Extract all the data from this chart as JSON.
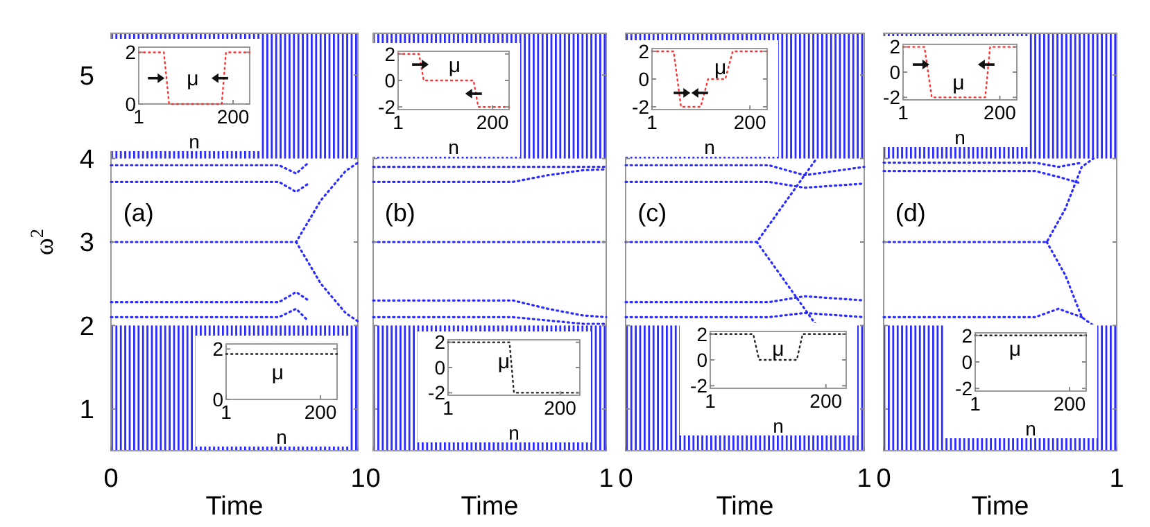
{
  "chart_data": [
    {
      "type": "line",
      "xlabel": "Time",
      "ylabel": "ω$^{2}$",
      "xlim": [
        0,
        1
      ],
      "ylim": [
        0.5,
        5.5
      ],
      "xticks": [
        0,
        1
      ],
      "yticks": [
        1,
        2,
        3,
        4,
        5
      ],
      "line_style": "dotted",
      "annotations": [
        "(a)"
      ],
      "bands": [
        {
          "axis": "y",
          "from": 0.5,
          "to": 2,
          "color": "#2b2bff"
        },
        {
          "axis": "y",
          "from": 4,
          "to": 5.5,
          "color": "#2b2bff"
        }
      ],
      "series": [
        {
          "color": "#2b2bff",
          "x": [
            0,
            0.68,
            0.75,
            0.8
          ],
          "values": [
            3.92,
            3.92,
            3.82,
            3.95
          ]
        },
        {
          "color": "#2b2bff",
          "x": [
            0,
            0.68,
            0.75,
            0.8
          ],
          "values": [
            3.72,
            3.72,
            3.6,
            3.7
          ]
        },
        {
          "color": "#2b2bff",
          "x": [
            0,
            0.75,
            0.85,
            0.95,
            1
          ],
          "values": [
            3,
            3,
            3.5,
            3.85,
            3.95
          ]
        },
        {
          "color": "#2b2bff",
          "x": [
            0.75,
            0.85,
            0.95,
            1
          ],
          "values": [
            3,
            2.5,
            2.15,
            2.05
          ]
        },
        {
          "color": "#2b2bff",
          "x": [
            0,
            0.68,
            0.75,
            0.8
          ],
          "values": [
            2.28,
            2.28,
            2.4,
            2.3
          ]
        },
        {
          "color": "#2b2bff",
          "x": [
            0,
            0.68,
            0.75,
            0.8
          ],
          "values": [
            2.1,
            2.1,
            2.2,
            2.05
          ]
        }
      ]
    },
    {
      "type": "line",
      "xlabel": "n",
      "xlim": [
        1,
        235
      ],
      "ylim": [
        0,
        2.2
      ],
      "xticks": [
        1,
        200
      ],
      "yticks": [
        0,
        2
      ],
      "line_style": "dotted",
      "annotations": [
        "μ"
      ],
      "series": [
        {
          "color": "#ff3333",
          "x": [
            1,
            54,
            65,
            176,
            185,
            235
          ],
          "values": [
            2,
            2,
            0,
            0,
            2,
            2
          ]
        }
      ]
    },
    {
      "type": "line",
      "xlabel": "n",
      "xlim": [
        1,
        235
      ],
      "ylim": [
        0,
        2.2
      ],
      "xticks": [
        1,
        200
      ],
      "yticks": [
        0,
        2
      ],
      "line_style": "dotted",
      "annotations": [
        "μ"
      ],
      "series": [
        {
          "color": "#222222",
          "x": [
            1,
            235
          ],
          "values": [
            1.8,
            1.8
          ]
        }
      ]
    },
    {
      "type": "line",
      "xlabel": "Time",
      "xlim": [
        0,
        1
      ],
      "ylim": [
        0.5,
        5.5
      ],
      "xticks": [
        0,
        1
      ],
      "yticks": [
        1,
        2,
        3,
        4,
        5
      ],
      "tick_labels": "x",
      "line_style": "dotted",
      "annotations": [
        "(b)"
      ],
      "bands": [
        {
          "axis": "y",
          "from": 0.5,
          "to": 2,
          "color": "#2b2bff"
        },
        {
          "axis": "y",
          "from": 4,
          "to": 5.5,
          "color": "#2b2bff"
        }
      ],
      "series": [
        {
          "color": "#2b2bff",
          "x": [
            0,
            1
          ],
          "values": [
            3.9,
            3.9
          ]
        },
        {
          "color": "#2b2bff",
          "x": [
            0,
            0.6,
            0.75,
            0.9,
            1
          ],
          "values": [
            3.72,
            3.72,
            3.8,
            3.86,
            3.87
          ]
        },
        {
          "color": "#2b2bff",
          "x": [
            0,
            1
          ],
          "values": [
            3,
            3
          ]
        },
        {
          "color": "#2b2bff",
          "x": [
            0,
            0.6,
            0.75,
            0.9,
            1
          ],
          "values": [
            2.3,
            2.3,
            2.2,
            2.12,
            2.1
          ]
        },
        {
          "color": "#2b2bff",
          "x": [
            0,
            0.6,
            0.75,
            0.9,
            1
          ],
          "values": [
            2.1,
            2.1,
            2.06,
            2.02,
            2.02
          ]
        }
      ]
    },
    {
      "type": "line",
      "xlabel": "n",
      "xlim": [
        1,
        235
      ],
      "ylim": [
        -2.2,
        2.2
      ],
      "xticks": [
        1,
        200
      ],
      "yticks": [
        -2,
        0,
        2
      ],
      "line_style": "dotted",
      "annotations": [
        "μ"
      ],
      "series": [
        {
          "color": "#ff3333",
          "x": [
            1,
            45,
            55,
            160,
            170,
            235
          ],
          "values": [
            2,
            2,
            0,
            0,
            -2,
            -2
          ]
        }
      ]
    },
    {
      "type": "line",
      "xlabel": "n",
      "xlim": [
        1,
        235
      ],
      "ylim": [
        -2.2,
        2.2
      ],
      "xticks": [
        1,
        200
      ],
      "yticks": [
        -2,
        0,
        2
      ],
      "line_style": "dotted",
      "annotations": [
        "μ"
      ],
      "series": [
        {
          "color": "#222222",
          "x": [
            1,
            110,
            118,
            235
          ],
          "values": [
            2,
            2,
            -2,
            -2
          ]
        }
      ]
    },
    {
      "type": "line",
      "xlabel": "Time",
      "xlim": [
        0,
        1
      ],
      "ylim": [
        0.5,
        5.5
      ],
      "xticks": [
        0,
        1
      ],
      "yticks": [
        1,
        2,
        3,
        4,
        5
      ],
      "tick_labels": "x",
      "line_style": "dotted",
      "annotations": [
        "(c)"
      ],
      "bands": [
        {
          "axis": "y",
          "from": 0.5,
          "to": 2,
          "color": "#2b2bff"
        },
        {
          "axis": "y",
          "from": 4,
          "to": 5.5,
          "color": "#2b2bff"
        }
      ],
      "series": [
        {
          "color": "#2b2bff",
          "x": [
            0,
            0.6,
            0.75,
            1
          ],
          "values": [
            3.92,
            3.92,
            3.8,
            3.9
          ]
        },
        {
          "color": "#2b2bff",
          "x": [
            0,
            0.6,
            0.75,
            1
          ],
          "values": [
            3.72,
            3.72,
            3.65,
            3.7
          ]
        },
        {
          "color": "#2b2bff",
          "x": [
            0,
            0.55,
            0.65,
            0.75,
            0.8
          ],
          "values": [
            3,
            3,
            3.4,
            3.8,
            4
          ]
        },
        {
          "color": "#2b2bff",
          "x": [
            0.55,
            0.65,
            0.75,
            0.8
          ],
          "values": [
            3,
            2.6,
            2.2,
            2
          ]
        },
        {
          "color": "#2b2bff",
          "x": [
            0,
            0.6,
            0.75,
            1
          ],
          "values": [
            2.28,
            2.28,
            2.35,
            2.3
          ]
        },
        {
          "color": "#2b2bff",
          "x": [
            0,
            0.6,
            0.75,
            1
          ],
          "values": [
            2.1,
            2.1,
            2.15,
            2.1
          ]
        }
      ]
    },
    {
      "type": "line",
      "xlabel": "n",
      "xlim": [
        1,
        235
      ],
      "ylim": [
        -2.2,
        2.2
      ],
      "xticks": [
        1,
        200
      ],
      "yticks": [
        -2,
        0,
        2
      ],
      "line_style": "dotted",
      "annotations": [
        "μ"
      ],
      "series": [
        {
          "color": "#ff3333",
          "x": [
            1,
            45,
            60,
            100,
            115,
            150,
            165,
            235
          ],
          "values": [
            2,
            2,
            -2,
            -2,
            0,
            0,
            2,
            2
          ]
        }
      ]
    },
    {
      "type": "line",
      "xlabel": "n",
      "xlim": [
        1,
        235
      ],
      "ylim": [
        -2.2,
        2.2
      ],
      "xticks": [
        1,
        200
      ],
      "yticks": [
        -2,
        0,
        2
      ],
      "line_style": "dotted",
      "annotations": [
        "μ"
      ],
      "series": [
        {
          "color": "#222222",
          "x": [
            1,
            75,
            85,
            150,
            160,
            235
          ],
          "values": [
            2,
            2,
            0,
            0,
            2,
            2
          ]
        }
      ]
    },
    {
      "type": "line",
      "xlabel": "Time",
      "xlim": [
        0,
        1
      ],
      "ylim": [
        0.5,
        5.5
      ],
      "xticks": [
        0,
        1
      ],
      "yticks": [
        1,
        2,
        3,
        4,
        5
      ],
      "tick_labels": "x",
      "line_style": "dotted",
      "annotations": [
        "(d)"
      ],
      "bands": [
        {
          "axis": "y",
          "from": 0.5,
          "to": 2,
          "color": "#2b2bff"
        },
        {
          "axis": "y",
          "from": 4,
          "to": 5.5,
          "color": "#2b2bff"
        }
      ],
      "series": [
        {
          "color": "#2b2bff",
          "x": [
            0,
            0.65,
            0.75,
            0.85
          ],
          "values": [
            3.95,
            3.95,
            3.9,
            3.95
          ]
        },
        {
          "color": "#2b2bff",
          "x": [
            0,
            0.65,
            0.75,
            0.85
          ],
          "values": [
            3.85,
            3.85,
            3.78,
            3.7
          ]
        },
        {
          "color": "#2b2bff",
          "x": [
            0,
            0.7,
            0.78,
            0.85,
            0.9
          ],
          "values": [
            3,
            3,
            3.4,
            3.9,
            4
          ]
        },
        {
          "color": "#2b2bff",
          "x": [
            0.7,
            0.78,
            0.85,
            0.9
          ],
          "values": [
            3,
            2.6,
            2.1,
            2
          ]
        },
        {
          "color": "#2b2bff",
          "x": [
            0,
            0.65,
            0.75,
            0.85
          ],
          "values": [
            2.1,
            2.1,
            2.2,
            2.1
          ]
        }
      ]
    },
    {
      "type": "line",
      "xlabel": "n",
      "xlim": [
        1,
        235
      ],
      "ylim": [
        -2.2,
        2.2
      ],
      "xticks": [
        1,
        200
      ],
      "yticks": [
        -2,
        0,
        2
      ],
      "line_style": "dotted",
      "annotations": [
        "μ"
      ],
      "series": [
        {
          "color": "#ff3333",
          "x": [
            1,
            45,
            60,
            170,
            180,
            235
          ],
          "values": [
            2,
            2,
            -2,
            -2,
            2,
            2
          ]
        }
      ]
    },
    {
      "type": "line",
      "xlabel": "n",
      "xlim": [
        1,
        235
      ],
      "ylim": [
        -2.2,
        2.2
      ],
      "xticks": [
        1,
        200
      ],
      "yticks": [
        -2,
        0,
        2
      ],
      "line_style": "dotted",
      "annotations": [
        "μ"
      ],
      "series": [
        {
          "color": "#222222",
          "x": [
            1,
            235
          ],
          "values": [
            2,
            2
          ]
        }
      ]
    }
  ]
}
